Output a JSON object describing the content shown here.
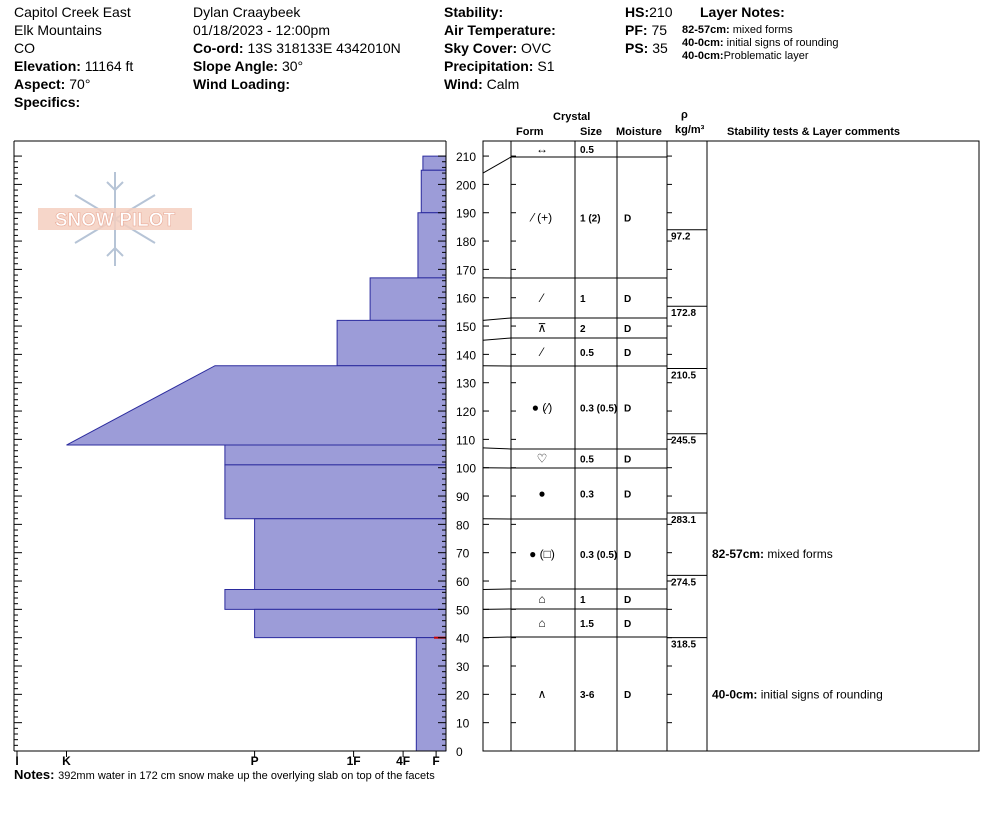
{
  "header": {
    "location": "Capitol Creek East",
    "range": "Elk Mountains",
    "state": "CO",
    "elevation_label": "Elevation:",
    "elevation": "11164 ft",
    "aspect_label": "Aspect:",
    "aspect": "70°",
    "specifics_label": "Specifics:",
    "observer": "Dylan Craaybeek",
    "datetime": "01/18/2023 - 12:00pm",
    "coord_label": "Co-ord:",
    "coord": "13S 318133E 4342010N",
    "slope_label": "Slope Angle:",
    "slope": "30°",
    "wind_loading_label": "Wind Loading:",
    "stability_label": "Stability:",
    "air_temp_label": "Air Temperature:",
    "sky_label": "Sky Cover:",
    "sky": "OVC",
    "precip_label": "Precipitation:",
    "precip": "S1",
    "wind_label": "Wind:",
    "wind": "Calm",
    "hs_label": "HS:",
    "hs": "210",
    "pf_label": "PF:",
    "pf": "75",
    "ps_label": "PS:",
    "ps": "35",
    "layer_notes_title": "Layer Notes:",
    "layer_notes": [
      {
        "range": "82-57cm:",
        "text": "mixed forms"
      },
      {
        "range": "40-0cm:",
        "text": "initial signs of rounding"
      },
      {
        "range": "40-0cm:",
        "text": "Problematic layer"
      }
    ]
  },
  "logo_text": "SNOW PILOT",
  "table_headers": {
    "crystal": "Crystal",
    "form": "Form",
    "size": "Size",
    "moisture": "Moisture",
    "rho": "ρ",
    "density_unit": "kg/m³",
    "comments": "Stability tests & Layer comments"
  },
  "notes_label": "Notes:",
  "notes": "392mm water in 172 cm snow make up the overlying slab on top of the facets",
  "colors": {
    "hardness_fill": "#9c9cd8",
    "hardness_stroke": "#2b2b9e",
    "problem_layer": "#cc0000"
  },
  "chart_data": {
    "type": "snow_profile",
    "y_axis": {
      "min": 0,
      "max": 210,
      "ticks": [
        0,
        10,
        20,
        30,
        40,
        50,
        60,
        70,
        80,
        90,
        100,
        110,
        120,
        130,
        140,
        150,
        160,
        170,
        180,
        190,
        200,
        210
      ]
    },
    "hardness_scale": [
      "I",
      "K",
      "P",
      "1F",
      "4F",
      "F"
    ],
    "hardness_profile": [
      {
        "top": 210,
        "bottom": 205,
        "hardness": 0.7
      },
      {
        "top": 205,
        "bottom": 190,
        "hardness": 0.75
      },
      {
        "top": 190,
        "bottom": 167,
        "hardness": 0.85
      },
      {
        "top": 167,
        "bottom": 152,
        "hardness": 2.3
      },
      {
        "top": 152,
        "bottom": 136,
        "hardness": 3.3
      },
      {
        "top": 136,
        "bottom": 108,
        "hardness_top": 7.0,
        "hardness_bottom": 11.5
      },
      {
        "top": 108,
        "bottom": 101,
        "hardness": 6.7
      },
      {
        "top": 101,
        "bottom": 82,
        "hardness": 6.7
      },
      {
        "top": 82,
        "bottom": 57,
        "hardness": 5.8
      },
      {
        "top": 57,
        "bottom": 50,
        "hardness": 6.7
      },
      {
        "top": 50,
        "bottom": 40,
        "hardness": 5.8
      },
      {
        "top": 40,
        "bottom": 0,
        "hardness": 0.9
      }
    ],
    "problem_layer": {
      "top": 40,
      "bottom": 0
    },
    "layers": [
      {
        "top": 210,
        "bottom": 204,
        "form": "↔",
        "size": "0.5",
        "moisture": ""
      },
      {
        "top": 204,
        "bottom": 167,
        "form": "⁄ (+)",
        "size": "1 (2)",
        "moisture": "D"
      },
      {
        "top": 167,
        "bottom": 152,
        "form": "⁄",
        "size": "1",
        "moisture": "D"
      },
      {
        "top": 152,
        "bottom": 145,
        "form": "⊼",
        "size": "2",
        "moisture": "D"
      },
      {
        "top": 145,
        "bottom": 136,
        "form": "⁄",
        "size": "0.5",
        "moisture": "D"
      },
      {
        "top": 136,
        "bottom": 107,
        "form": "● (⁄)",
        "size": "0.3 (0.5)",
        "moisture": "D"
      },
      {
        "top": 107,
        "bottom": 100,
        "form": "♡",
        "size": "0.5",
        "moisture": "D"
      },
      {
        "top": 100,
        "bottom": 82,
        "form": "●",
        "size": "0.3",
        "moisture": "D"
      },
      {
        "top": 82,
        "bottom": 57,
        "form": "● (□)",
        "size": "0.3 (0.5)",
        "moisture": "D"
      },
      {
        "top": 57,
        "bottom": 50,
        "form": "⌂",
        "size": "1",
        "moisture": "D"
      },
      {
        "top": 50,
        "bottom": 40,
        "form": "⌂",
        "size": "1.5",
        "moisture": "D"
      },
      {
        "top": 40,
        "bottom": 0,
        "form": "∧",
        "size": "3-6",
        "moisture": "D"
      }
    ],
    "densities": [
      {
        "height": 184,
        "value": "97.2"
      },
      {
        "height": 157,
        "value": "172.8"
      },
      {
        "height": 135,
        "value": "210.5"
      },
      {
        "height": 112,
        "value": "245.5"
      },
      {
        "height": 84,
        "value": "283.1"
      },
      {
        "height": 62,
        "value": "274.5"
      },
      {
        "height": 40,
        "value": "318.5"
      }
    ],
    "comments": [
      {
        "height": 69.5,
        "range": "82-57cm:",
        "text": "mixed forms"
      },
      {
        "height": 20,
        "range": "40-0cm:",
        "text": "initial signs of rounding"
      }
    ]
  }
}
